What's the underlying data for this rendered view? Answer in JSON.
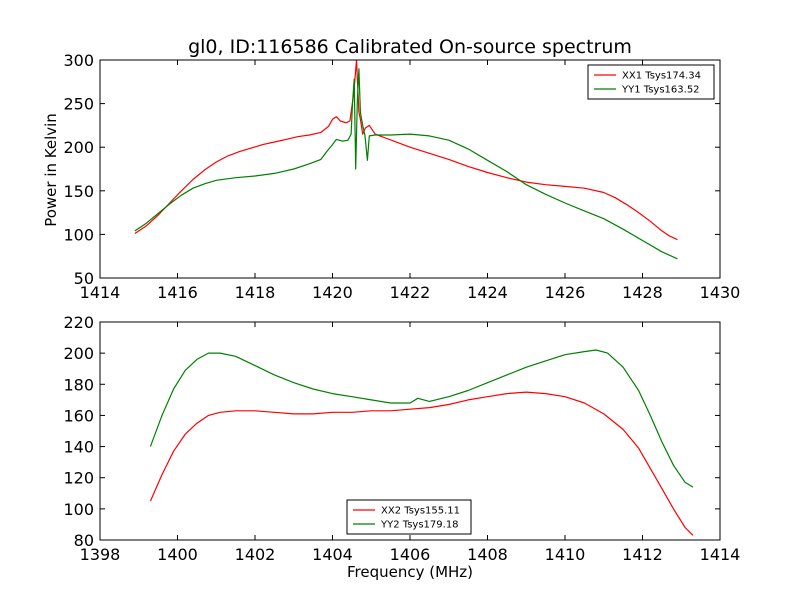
{
  "chart_data": [
    {
      "type": "line",
      "title": "gl0, ID:116586 Calibrated On-source spectrum",
      "xlabel": "",
      "ylabel": "Power in Kelvin",
      "xlim": [
        1414,
        1430
      ],
      "ylim": [
        50,
        300
      ],
      "xticks": [
        1414,
        1416,
        1418,
        1420,
        1422,
        1424,
        1426,
        1428,
        1430
      ],
      "yticks": [
        50,
        100,
        150,
        200,
        250,
        300
      ],
      "legend_position": "top-right",
      "series": [
        {
          "name": "XX1 Tsys174.34",
          "color": "#ff0000",
          "x": [
            1414.9,
            1415.2,
            1415.5,
            1415.8,
            1416.1,
            1416.4,
            1416.7,
            1417.0,
            1417.3,
            1417.6,
            1417.9,
            1418.2,
            1418.5,
            1418.8,
            1419.1,
            1419.4,
            1419.7,
            1419.9,
            1420.0,
            1420.1,
            1420.2,
            1420.35,
            1420.45,
            1420.55,
            1420.62,
            1420.68,
            1420.72,
            1420.78,
            1420.85,
            1420.95,
            1421.1,
            1421.4,
            1421.7,
            1422.0,
            1422.5,
            1423.0,
            1423.5,
            1424.0,
            1424.5,
            1425.0,
            1425.5,
            1426.0,
            1426.5,
            1427.0,
            1427.3,
            1427.6,
            1427.9,
            1428.2,
            1428.5,
            1428.7,
            1428.9
          ],
          "y": [
            101,
            110,
            122,
            136,
            150,
            163,
            174,
            183,
            190,
            195,
            199,
            203,
            206,
            209,
            212,
            214,
            217,
            224,
            232,
            235,
            230,
            228,
            230,
            262,
            300,
            240,
            232,
            215,
            222,
            225,
            215,
            210,
            205,
            200,
            193,
            186,
            178,
            171,
            165,
            160,
            157,
            155,
            153,
            148,
            142,
            134,
            125,
            115,
            104,
            98,
            94
          ]
        },
        {
          "name": "YY1 Tsys163.52",
          "color": "#008000",
          "x": [
            1414.9,
            1415.2,
            1415.5,
            1415.8,
            1416.1,
            1416.4,
            1416.7,
            1417.0,
            1417.5,
            1418.0,
            1418.5,
            1419.0,
            1419.4,
            1419.7,
            1419.85,
            1420.0,
            1420.1,
            1420.25,
            1420.4,
            1420.48,
            1420.52,
            1420.56,
            1420.6,
            1420.64,
            1420.68,
            1420.72,
            1420.78,
            1420.84,
            1420.9,
            1420.95,
            1421.1,
            1421.5,
            1422.0,
            1422.5,
            1423.0,
            1423.5,
            1424.0,
            1424.5,
            1425.0,
            1425.5,
            1426.0,
            1426.5,
            1427.0,
            1427.5,
            1428.0,
            1428.5,
            1428.9
          ],
          "y": [
            104,
            113,
            124,
            135,
            145,
            153,
            158,
            162,
            165,
            167,
            170,
            175,
            181,
            186,
            195,
            203,
            209,
            207,
            208,
            215,
            252,
            278,
            175,
            252,
            290,
            240,
            225,
            213,
            185,
            213,
            214,
            214,
            215,
            213,
            208,
            198,
            185,
            172,
            157,
            146,
            136,
            127,
            118,
            106,
            93,
            80,
            72
          ]
        }
      ]
    },
    {
      "type": "line",
      "title": "",
      "xlabel": "Frequency (MHz)",
      "ylabel": "",
      "xlim": [
        1398,
        1414
      ],
      "ylim": [
        80,
        220
      ],
      "xticks": [
        1398,
        1400,
        1402,
        1404,
        1406,
        1408,
        1410,
        1412,
        1414
      ],
      "yticks": [
        80,
        100,
        120,
        140,
        160,
        180,
        200,
        220
      ],
      "legend_position": "lower-center",
      "series": [
        {
          "name": "XX2 Tsys155.11",
          "color": "#ff0000",
          "x": [
            1399.3,
            1399.6,
            1399.9,
            1400.2,
            1400.5,
            1400.8,
            1401.1,
            1401.5,
            1402.0,
            1402.5,
            1403.0,
            1403.5,
            1404.0,
            1404.5,
            1405.0,
            1405.5,
            1406.0,
            1406.5,
            1407.0,
            1407.5,
            1408.0,
            1408.5,
            1409.0,
            1409.5,
            1410.0,
            1410.5,
            1411.0,
            1411.5,
            1411.9,
            1412.2,
            1412.5,
            1412.8,
            1413.1,
            1413.3
          ],
          "y": [
            105,
            122,
            137,
            148,
            155,
            160,
            162,
            163,
            163,
            162,
            161,
            161,
            162,
            162,
            163,
            163,
            164,
            165,
            167,
            170,
            172,
            174,
            175,
            174,
            172,
            168,
            161,
            151,
            139,
            126,
            113,
            100,
            88,
            83
          ]
        },
        {
          "name": "YY2 Tsys179.18",
          "color": "#008000",
          "x": [
            1399.3,
            1399.6,
            1399.9,
            1400.2,
            1400.5,
            1400.8,
            1401.1,
            1401.5,
            1402.0,
            1402.5,
            1403.0,
            1403.5,
            1404.0,
            1404.5,
            1405.0,
            1405.5,
            1406.0,
            1406.2,
            1406.5,
            1407.0,
            1407.5,
            1408.0,
            1408.5,
            1409.0,
            1409.5,
            1410.0,
            1410.5,
            1410.8,
            1411.1,
            1411.5,
            1411.9,
            1412.2,
            1412.5,
            1412.8,
            1413.1,
            1413.3
          ],
          "y": [
            140,
            160,
            177,
            189,
            196,
            200,
            200,
            198,
            192,
            186,
            181,
            177,
            174,
            172,
            170,
            168,
            168,
            171,
            169,
            172,
            176,
            181,
            186,
            191,
            195,
            199,
            201,
            202,
            200,
            191,
            176,
            160,
            143,
            128,
            117,
            114
          ]
        }
      ]
    }
  ]
}
